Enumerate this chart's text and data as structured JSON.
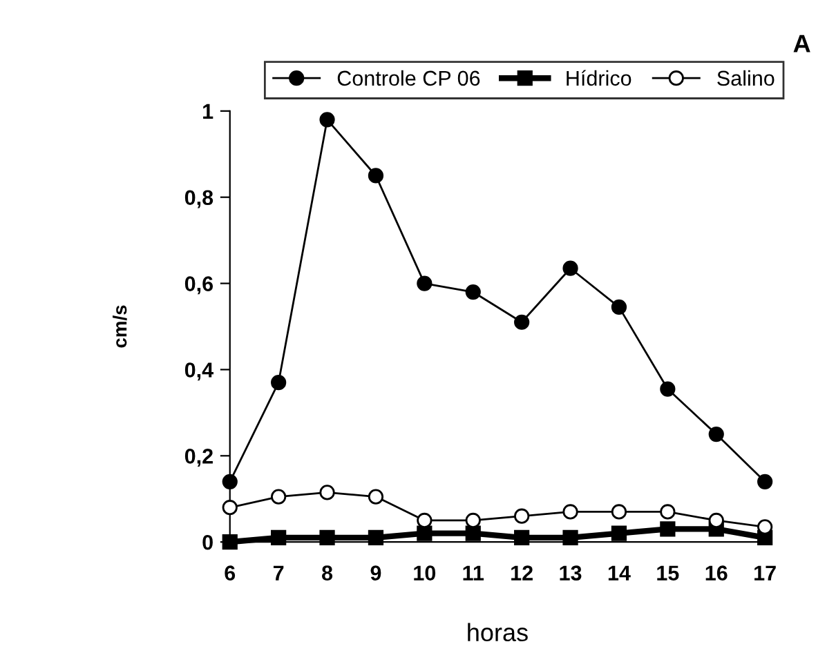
{
  "chart_data": {
    "type": "line",
    "xlabel": "horas",
    "ylabel": "cm/s",
    "annotations": [
      "A"
    ],
    "x": [
      6,
      7,
      8,
      9,
      10,
      11,
      12,
      13,
      14,
      15,
      16,
      17
    ],
    "series": [
      {
        "name": "Controle CP 06",
        "color": "#000000",
        "marker": "circle",
        "values": [
          0.14,
          0.37,
          0.98,
          0.85,
          0.6,
          0.58,
          0.51,
          0.635,
          0.545,
          0.355,
          0.25,
          0.14
        ]
      },
      {
        "name": "Hídrico",
        "color": "#000000",
        "marker": "square",
        "values": [
          0,
          0.01,
          0.01,
          0.01,
          0.02,
          0.02,
          0.01,
          0.01,
          0.02,
          0.03,
          0.03,
          0.01
        ]
      },
      {
        "name": "Salino",
        "color": "#000000",
        "marker": "circle-open",
        "values": [
          0.08,
          0.105,
          0.115,
          0.105,
          0.05,
          0.05,
          0.06,
          0.07,
          0.07,
          0.07,
          0.05,
          0.035
        ]
      }
    ],
    "xlim": [
      6,
      17
    ],
    "xticks": [
      6,
      7,
      8,
      9,
      10,
      11,
      12,
      13,
      14,
      15,
      16,
      17
    ],
    "ylim": [
      0,
      1
    ],
    "yticks": [
      0,
      {
        "value": 0.2,
        "label": "0,2"
      },
      {
        "value": 0.4,
        "label": "0,4"
      },
      {
        "value": 0.6,
        "label": "0,6"
      },
      {
        "value": 0.8,
        "label": "0,8"
      },
      1
    ],
    "grid": false,
    "legend": "top",
    "line_style": "solid"
  }
}
